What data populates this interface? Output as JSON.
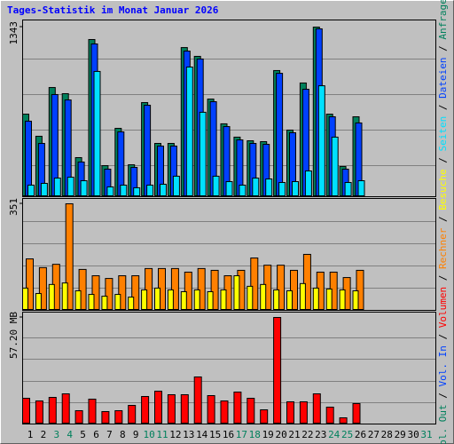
{
  "chart_data": [
    {
      "type": "bar",
      "title": "Tages-Statistik im Monat Januar 2026",
      "ylim": [
        0,
        1343
      ],
      "yticks": [
        1343
      ],
      "legend_separator": " / ",
      "series": [
        {
          "name": "Anfragen",
          "color": "#00805c",
          "values": [
            650,
            474,
            862,
            813,
            304,
            1244,
            240,
            537,
            247,
            742,
            417,
            417,
            1180,
            1110,
            770,
            573,
            467,
            438,
            431,
            997,
            523,
            898,
            1343,
            650,
            233,
            629,
            0,
            0,
            0,
            0,
            0
          ]
        },
        {
          "name": "Dateien",
          "color": "#0040ff",
          "values": [
            594,
            417,
            806,
            763,
            269,
            1209,
            212,
            509,
            226,
            721,
            396,
            396,
            1152,
            1089,
            749,
            551,
            445,
            417,
            410,
            975,
            502,
            848,
            1329,
            629,
            212,
            580,
            0,
            0,
            0,
            0,
            0
          ]
        },
        {
          "name": "Seiten",
          "color": "#00e0ff",
          "values": [
            85,
            99,
            141,
            148,
            120,
            990,
            71,
            85,
            64,
            85,
            92,
            156,
            1025,
            665,
            156,
            113,
            85,
            141,
            134,
            106,
            113,
            198,
            876,
            467,
            106,
            120,
            0,
            0,
            0,
            0,
            0
          ]
        }
      ]
    },
    {
      "type": "bar",
      "ylim": [
        0,
        351
      ],
      "yticks": [
        351
      ],
      "legend_separator": " / ",
      "series": [
        {
          "name": "Besuche",
          "color": "#ffff00",
          "values": [
            71,
            53,
            83,
            88,
            62,
            50,
            44,
            50,
            41,
            65,
            71,
            65,
            59,
            65,
            59,
            65,
            112,
            77,
            83,
            65,
            62,
            86,
            71,
            68,
            65,
            62,
            0,
            0,
            0,
            0,
            0
          ]
        },
        {
          "name": "Rechner",
          "color": "#ff8000",
          "values": [
            168,
            139,
            150,
            351,
            133,
            112,
            103,
            112,
            112,
            136,
            136,
            136,
            124,
            136,
            130,
            112,
            130,
            171,
            147,
            147,
            130,
            183,
            124,
            124,
            106,
            130,
            0,
            0,
            0,
            0,
            0
          ]
        }
      ]
    },
    {
      "type": "bar",
      "ylim": [
        0,
        57.2
      ],
      "yticks": [
        {
          "value": 57.2,
          "label": "57.20 MB"
        }
      ],
      "legend_separator": " / ",
      "categories": [
        "1",
        "2",
        "3",
        "4",
        "5",
        "6",
        "7",
        "8",
        "9",
        "10",
        "11",
        "12",
        "13",
        "14",
        "15",
        "16",
        "17",
        "18",
        "19",
        "20",
        "21",
        "22",
        "23",
        "24",
        "25",
        "26",
        "27",
        "28",
        "29",
        "30",
        "31"
      ],
      "category_colors": [
        "#000000",
        "#000000",
        "#00805c",
        "#00805c",
        "#000000",
        "#000000",
        "#000000",
        "#000000",
        "#000000",
        "#00805c",
        "#00805c",
        "#000000",
        "#000000",
        "#000000",
        "#000000",
        "#000000",
        "#00805c",
        "#00805c",
        "#000000",
        "#000000",
        "#000000",
        "#000000",
        "#000000",
        "#00805c",
        "#00805c",
        "#000000",
        "#000000",
        "#000000",
        "#000000",
        "#000000",
        "#00805c"
      ],
      "series": [
        {
          "name": "Volumen",
          "color": "#ff0000",
          "values": [
            13.46,
            12.02,
            13.94,
            15.86,
            6.73,
            12.98,
            6.25,
            6.73,
            9.61,
            14.42,
            17.3,
            15.38,
            15.38,
            25.0,
            14.9,
            12.02,
            16.82,
            13.46,
            7.21,
            57.2,
            11.54,
            11.54,
            15.86,
            8.65,
            2.88,
            10.58,
            0,
            0,
            0,
            0,
            0
          ]
        },
        {
          "name": "Vol. In",
          "color": "#0040ff"
        },
        {
          "name": "Vol. Out",
          "color": "#00805c"
        }
      ]
    }
  ]
}
